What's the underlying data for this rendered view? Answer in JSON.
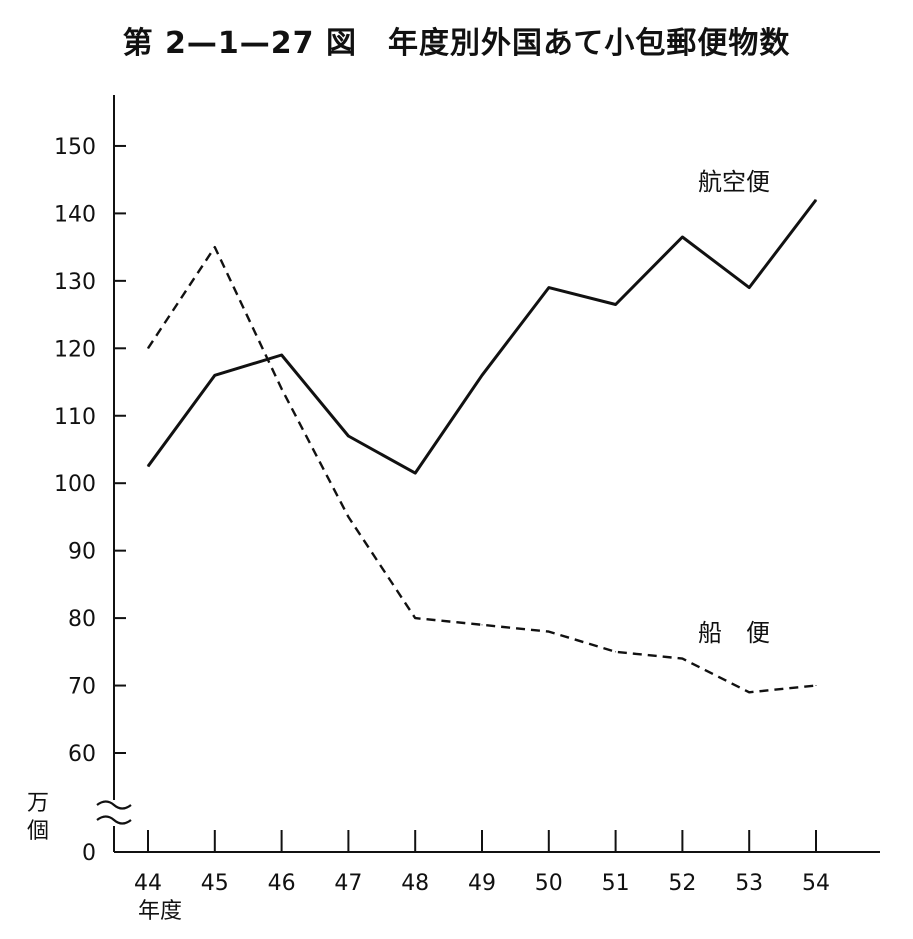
{
  "title": "第 2—1—27 図　年度別外国あて小包郵便物数",
  "chart_data": {
    "type": "line",
    "title": "第 2—1—27 図　年度別外国あて小包郵便物数",
    "ylabel": "万個",
    "xlabel": "年度",
    "categories": [
      "44",
      "45",
      "46",
      "47",
      "48",
      "49",
      "50",
      "51",
      "52",
      "53",
      "54"
    ],
    "yticks": [
      0,
      60,
      70,
      80,
      90,
      100,
      110,
      120,
      130,
      140,
      150
    ],
    "ylim": [
      55,
      155
    ],
    "axis_break": "between 0 and 60",
    "grid": false,
    "series": [
      {
        "name": "航空便",
        "style": "solid",
        "values": [
          102.5,
          116,
          119,
          107,
          101.5,
          116,
          129,
          126.5,
          136.5,
          129,
          142
        ]
      },
      {
        "name": "船　便",
        "style": "dashed",
        "values": [
          120,
          135,
          114,
          95,
          80,
          79,
          78,
          75,
          74,
          69,
          70
        ]
      }
    ]
  }
}
